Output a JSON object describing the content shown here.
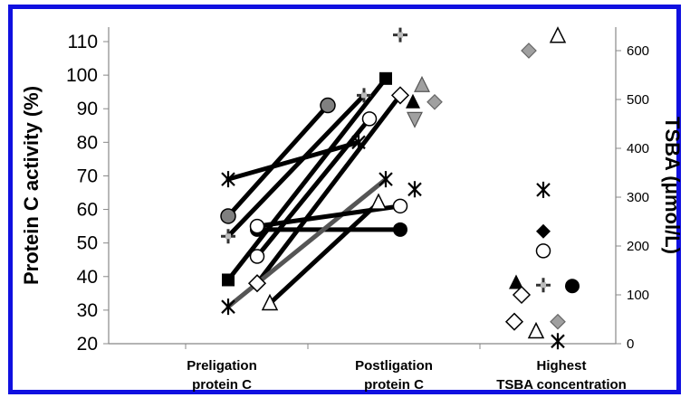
{
  "chart_data": {
    "type": "scatter",
    "ylabel": "Protein C activity (%)",
    "y2label": "TSBA (μmol/L)",
    "ylim": [
      20,
      110
    ],
    "y_ticks": [
      "20",
      "30",
      "40",
      "50",
      "60",
      "70",
      "80",
      "90",
      "100",
      "110"
    ],
    "y2lim": [
      0,
      650
    ],
    "y2_ticks": [
      "0",
      "100",
      "200",
      "300",
      "400",
      "500",
      "600"
    ],
    "categories": [
      [
        "Preligation",
        "protein C"
      ],
      [
        "Postligation",
        "protein C"
      ],
      [
        "Highest",
        "TSBA concentration"
      ]
    ],
    "grid": false,
    "paired_lines": [
      {
        "color": "#000000",
        "marker": "asterisk",
        "pre": 69,
        "post": 80
      },
      {
        "color": "#000000",
        "marker": "gray-circle",
        "pre": 58,
        "post": 91
      },
      {
        "color": "#000000",
        "marker": "plus",
        "pre": 52,
        "post": 94
      },
      {
        "color": "#000000",
        "marker": "filled-square",
        "pre": 39,
        "post": 99
      },
      {
        "color": "#000000",
        "marker": "filled-circle",
        "pre": 54,
        "post": 54
      },
      {
        "color": "#000000",
        "marker": "open-circle",
        "pre": 46,
        "post": 87
      },
      {
        "color": "#000000",
        "marker": "open-diamond",
        "pre": 38,
        "post": 94
      },
      {
        "color": "#555555",
        "marker": "asterisk",
        "pre": 31,
        "post": 69
      },
      {
        "color": "#000000",
        "marker": "open-circle",
        "pre": 55,
        "post": 61
      },
      {
        "color": "#000000",
        "marker": "open-triangle",
        "pre": 32,
        "post": 62
      }
    ],
    "postligation_extra": [
      {
        "marker": "plus",
        "value": 112
      },
      {
        "marker": "gray-triangle",
        "value": 97
      },
      {
        "marker": "filled-triangle",
        "value": 92
      },
      {
        "marker": "gray-down-triangle",
        "value": 87
      },
      {
        "marker": "gray-diamond",
        "value": 92
      },
      {
        "marker": "asterisk",
        "value": 66
      }
    ],
    "tsba_points": [
      {
        "marker": "gray-diamond",
        "value": 600
      },
      {
        "marker": "open-triangle",
        "value": 630
      },
      {
        "marker": "asterisk",
        "value": 315
      },
      {
        "marker": "filled-diamond",
        "value": 230
      },
      {
        "marker": "open-circle",
        "value": 190
      },
      {
        "marker": "filled-triangle",
        "value": 125
      },
      {
        "marker": "open-diamond",
        "value": 100
      },
      {
        "marker": "plus",
        "value": 120
      },
      {
        "marker": "filled-circle",
        "value": 118
      },
      {
        "marker": "open-diamond",
        "value": 45
      },
      {
        "marker": "open-triangle",
        "value": 25
      },
      {
        "marker": "gray-diamond",
        "value": 45
      },
      {
        "marker": "asterisk",
        "value": 5
      }
    ]
  }
}
